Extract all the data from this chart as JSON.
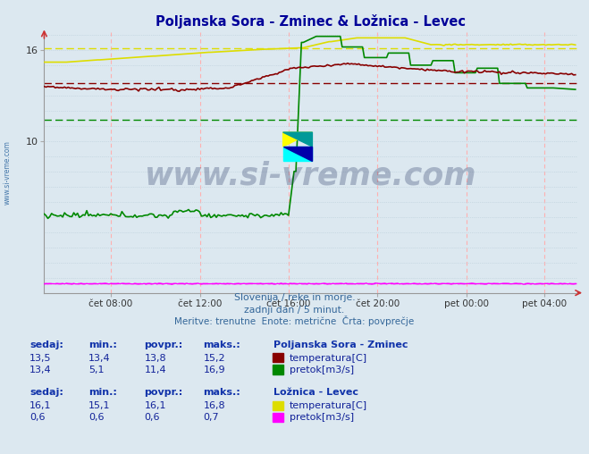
{
  "title": "Poljanska Sora - Zminec & Ložnica - Levec",
  "title_color": "#000099",
  "bg_color": "#dce8f0",
  "plot_bg_color": "#dce8f0",
  "grid_v_color": "#ffb0b0",
  "grid_h_color": "#b8ccd8",
  "x_tick_labels": [
    "čet 08:00",
    "čet 12:00",
    "čet 16:00",
    "čet 20:00",
    "pet 00:00",
    "pet 04:00"
  ],
  "x_tick_fracs": [
    0.125,
    0.292,
    0.458,
    0.625,
    0.792,
    0.938
  ],
  "y_ticks": [
    10,
    16
  ],
  "ylim": [
    0,
    17.2
  ],
  "xlim": [
    0,
    288
  ],
  "footer_line1": "Slovenija / reke in morje.",
  "footer_line2": "zadnji dan / 5 minut.",
  "footer_line3": "Meritve: trenutne  Enote: metrične  Črta: povprečje",
  "station1_name": "Poljanska Sora - Zminec",
  "station2_name": "Ložnica - Levec",
  "label_sedaj": "sedaj:",
  "label_min": "min.:",
  "label_povpr": "povpr.:",
  "label_maks": "maks.:",
  "s1_temp_sedaj": "13,5",
  "s1_temp_min": "13,4",
  "s1_temp_povpr": "13,8",
  "s1_temp_maks": "15,2",
  "s1_pretok_sedaj": "13,4",
  "s1_pretok_min": "5,1",
  "s1_pretok_povpr": "11,4",
  "s1_pretok_maks": "16,9",
  "s2_temp_sedaj": "16,1",
  "s2_temp_min": "15,1",
  "s2_temp_povpr": "16,1",
  "s2_temp_maks": "16,8",
  "s2_pretok_sedaj": "0,6",
  "s2_pretok_min": "0,6",
  "s2_pretok_povpr": "0,6",
  "s2_pretok_maks": "0,7",
  "color_s1_temp": "#880000",
  "color_s1_pretok": "#008800",
  "color_s2_temp": "#dddd00",
  "color_s2_pretok": "#ff00ff",
  "avg_s1_temp": 13.8,
  "avg_s1_pretok": 11.4,
  "avg_s2_temp": 16.1,
  "avg_s2_pretok": 0.6,
  "watermark_text": "www.si-vreme.com",
  "watermark_color": "#1a2a5a",
  "watermark_alpha": 0.28
}
